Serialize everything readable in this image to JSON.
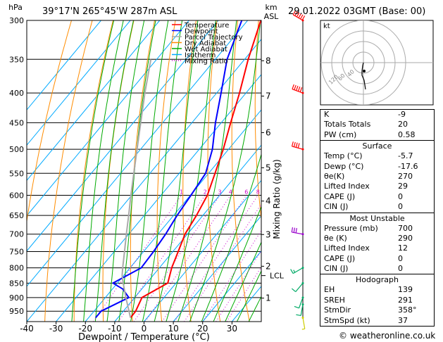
{
  "header": {
    "location": "39°17'N  265°45'W  287m  ASL",
    "datetime": "29.01.2022  03GMT  (Base: 00)",
    "pressure_unit": "hPa",
    "km_unit": "km",
    "asl_unit": "ASL"
  },
  "legend": {
    "items": [
      {
        "label": "Temperature",
        "color": "#ff0000",
        "style": "solid"
      },
      {
        "label": "Dewpoint",
        "color": "#0000ff",
        "style": "solid"
      },
      {
        "label": "Parcel Trajectory",
        "color": "#aaaaaa",
        "style": "solid"
      },
      {
        "label": "Dry Adiabat",
        "color": "#ff8c00",
        "style": "solid"
      },
      {
        "label": "Wet Adiabat",
        "color": "#00aa00",
        "style": "solid"
      },
      {
        "label": "Isotherm",
        "color": "#00aaff",
        "style": "solid"
      },
      {
        "label": "Mixing Ratio",
        "color": "#cc00cc",
        "style": "dotted"
      }
    ]
  },
  "chart_data": {
    "type": "line",
    "title": "Skew-T log-P diagram",
    "xlabel": "Dewpoint / Temperature (°C)",
    "ylabel": "hPa",
    "right_label": "Mixing Ratio (g/kg)",
    "xlim": [
      -40,
      40
    ],
    "ylim": [
      300,
      990
    ],
    "x_ticks": [
      -40,
      -30,
      -20,
      -10,
      0,
      10,
      20,
      30
    ],
    "pressure_ticks": [
      300,
      350,
      400,
      450,
      500,
      550,
      600,
      650,
      700,
      750,
      800,
      850,
      900,
      950
    ],
    "km_ticks": [
      {
        "label": "8",
        "p": 352
      },
      {
        "label": "7",
        "p": 405
      },
      {
        "label": "6",
        "p": 468
      },
      {
        "label": "5",
        "p": 538
      },
      {
        "label": "4",
        "p": 614
      },
      {
        "label": "3",
        "p": 701
      },
      {
        "label": "2",
        "p": 795
      },
      {
        "label": "1",
        "p": 902
      }
    ],
    "lcl": {
      "label": "LCL",
      "p": 825
    },
    "mixing_ratio_labels": [
      "1",
      "2",
      "3",
      "4",
      "6",
      "8",
      "10",
      "15",
      "20",
      "25"
    ],
    "mixing_ratio_values": [
      1,
      2,
      3,
      4,
      6,
      8,
      10,
      15,
      20,
      25
    ],
    "series": [
      {
        "name": "Temperature",
        "points": [
          [
            975,
            -5.7
          ],
          [
            950,
            -5.8
          ],
          [
            900,
            -7.5
          ],
          [
            850,
            -2.8
          ],
          [
            800,
            -5.8
          ],
          [
            750,
            -8.2
          ],
          [
            700,
            -10.8
          ],
          [
            650,
            -12.2
          ],
          [
            600,
            -14.2
          ],
          [
            550,
            -17.8
          ],
          [
            500,
            -21.8
          ],
          [
            450,
            -26.8
          ],
          [
            400,
            -32.2
          ],
          [
            350,
            -38.8
          ],
          [
            300,
            -45.5
          ]
        ]
      },
      {
        "name": "Dewpoint",
        "points": [
          [
            975,
            -17.6
          ],
          [
            950,
            -17.6
          ],
          [
            900,
            -12.0
          ],
          [
            870,
            -16.5
          ],
          [
            850,
            -21.5
          ],
          [
            800,
            -16.2
          ],
          [
            750,
            -16.6
          ],
          [
            700,
            -17.4
          ],
          [
            650,
            -18.8
          ],
          [
            600,
            -19.8
          ],
          [
            550,
            -21.0
          ],
          [
            500,
            -25.5
          ],
          [
            450,
            -32.0
          ],
          [
            400,
            -38.5
          ],
          [
            350,
            -46.0
          ],
          [
            300,
            -52.0
          ]
        ]
      },
      {
        "name": "Parcel Trajectory",
        "points": [
          [
            975,
            -5.7
          ],
          [
            900,
            -13.0
          ],
          [
            850,
            -18.0
          ],
          [
            825,
            -20.5
          ],
          [
            800,
            -22.5
          ],
          [
            750,
            -26.5
          ],
          [
            700,
            -30.8
          ],
          [
            650,
            -35.3
          ],
          [
            600,
            -40.3
          ],
          [
            550,
            -45.5
          ],
          [
            500,
            -51.2
          ],
          [
            450,
            -57.5
          ],
          [
            400,
            -64.5
          ],
          [
            350,
            -72.0
          ]
        ]
      }
    ],
    "wind_barbs": [
      {
        "p": 300,
        "dir": 300,
        "kt": 60
      },
      {
        "p": 400,
        "dir": 290,
        "kt": 50
      },
      {
        "p": 500,
        "dir": 285,
        "kt": 40
      },
      {
        "p": 700,
        "dir": 280,
        "kt": 30
      },
      {
        "p": 800,
        "dir": 240,
        "kt": 15
      },
      {
        "p": 850,
        "dir": 220,
        "kt": 10
      },
      {
        "p": 900,
        "dir": 200,
        "kt": 10
      },
      {
        "p": 925,
        "dir": 190,
        "kt": 10
      },
      {
        "p": 975,
        "dir": 170,
        "kt": 5
      }
    ]
  },
  "hodograph": {
    "unit_label": "kt",
    "ring_labels": [
      "40",
      "60",
      "120"
    ],
    "trace": [
      [
        0,
        0
      ],
      [
        -1,
        4
      ],
      [
        -2,
        12
      ],
      [
        -2,
        18
      ],
      [
        1,
        25
      ],
      [
        3,
        38
      ]
    ]
  },
  "stats": {
    "top": [
      {
        "label": "K",
        "value": "-9"
      },
      {
        "label": "Totals Totals",
        "value": "20"
      },
      {
        "label": "PW (cm)",
        "value": "0.58"
      }
    ],
    "surface": {
      "title": "Surface",
      "rows": [
        {
          "label": "Temp (°C)",
          "value": "-5.7"
        },
        {
          "label": "Dewp (°C)",
          "value": "-17.6"
        },
        {
          "label": "θe(K)",
          "value": "270"
        },
        {
          "label": "Lifted Index",
          "value": "29"
        },
        {
          "label": "CAPE (J)",
          "value": "0"
        },
        {
          "label": "CIN (J)",
          "value": "0"
        }
      ]
    },
    "most_unstable": {
      "title": "Most Unstable",
      "rows": [
        {
          "label": "Pressure (mb)",
          "value": "700"
        },
        {
          "label": "θe (K)",
          "value": "290"
        },
        {
          "label": "Lifted Index",
          "value": "12"
        },
        {
          "label": "CAPE (J)",
          "value": "0"
        },
        {
          "label": "CIN (J)",
          "value": "0"
        }
      ]
    },
    "hodograph_stats": {
      "title": "Hodograph",
      "rows": [
        {
          "label": "EH",
          "value": "139"
        },
        {
          "label": "SREH",
          "value": "291"
        },
        {
          "label": "StmDir",
          "value": "358°"
        },
        {
          "label": "StmSpd (kt)",
          "value": "37"
        }
      ]
    }
  },
  "footer": {
    "copyright": "© weatheronline.co.uk"
  }
}
